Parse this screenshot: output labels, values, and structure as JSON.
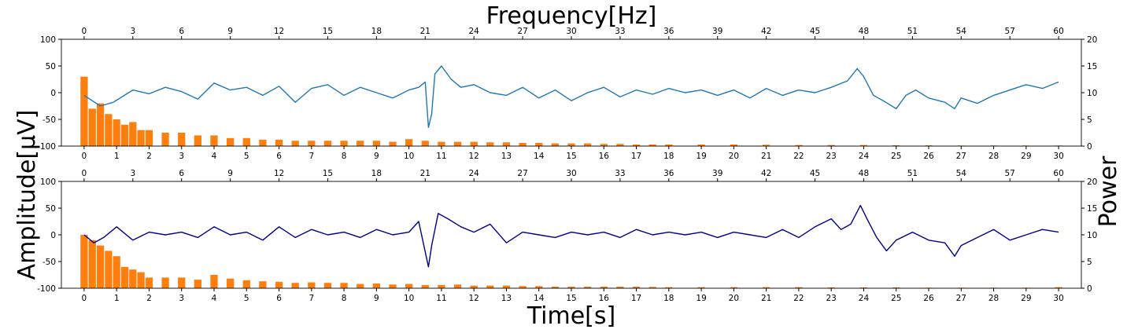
{
  "figure": {
    "top_xlabel": "Frequency[Hz]",
    "bottom_xlabel": "Time[s]",
    "left_ylabel": "Amplitude[μV]",
    "right_ylabel": "Power"
  },
  "chart_data": [
    {
      "type": "line",
      "panel": "top",
      "series": [
        {
          "name": "",
          "color": "#1f77b4",
          "x": [
            0,
            0.5,
            0.9,
            1.5,
            2,
            2.5,
            3,
            3.5,
            4,
            4.5,
            5,
            5.5,
            6,
            6.5,
            7,
            7.5,
            8,
            8.5,
            9,
            9.5,
            10,
            10.3,
            10.5,
            10.6,
            10.7,
            10.8,
            11,
            11.3,
            11.6,
            12,
            12.5,
            13,
            13.5,
            14,
            14.5,
            15,
            15.5,
            16,
            16.5,
            17,
            17.5,
            18,
            18.5,
            19,
            19.5,
            20,
            20.5,
            21,
            21.5,
            22,
            22.5,
            23,
            23.5,
            23.8,
            24,
            24.3,
            24.6,
            25,
            25.3,
            25.6,
            26,
            26.5,
            26.8,
            27,
            27.5,
            28,
            28.5,
            29,
            29.5,
            30
          ],
          "y": [
            -5,
            -25,
            -18,
            5,
            -2,
            10,
            2,
            -12,
            18,
            5,
            10,
            -5,
            12,
            -18,
            8,
            15,
            -5,
            10,
            0,
            -10,
            5,
            10,
            20,
            -65,
            -40,
            35,
            50,
            25,
            10,
            15,
            0,
            -5,
            10,
            -10,
            5,
            -15,
            0,
            10,
            -8,
            5,
            -3,
            8,
            0,
            5,
            -5,
            5,
            -10,
            8,
            -5,
            5,
            0,
            10,
            22,
            45,
            30,
            -5,
            -15,
            -30,
            -5,
            5,
            -10,
            -18,
            -30,
            -10,
            -20,
            -5,
            5,
            15,
            8,
            20
          ]
        }
      ],
      "xlim": [
        -0.7,
        30.7
      ],
      "ylim": [
        -100,
        100
      ],
      "xticks": [
        0,
        1,
        2,
        3,
        4,
        5,
        6,
        7,
        8,
        9,
        10,
        11,
        12,
        13,
        14,
        15,
        16,
        17,
        18,
        19,
        20,
        21,
        22,
        23,
        24,
        25,
        26,
        27,
        28,
        29,
        30
      ],
      "yticks": [
        -100,
        -50,
        0,
        50,
        100
      ]
    },
    {
      "type": "bar",
      "panel": "top",
      "series": [
        {
          "name": "",
          "color": "#ff7f0e",
          "x": [
            0,
            0.5,
            1,
            1.5,
            2,
            2.5,
            3,
            3.5,
            4,
            5,
            6,
            7,
            8,
            9,
            10,
            11,
            12,
            13,
            14,
            15,
            16,
            17,
            18,
            19,
            20,
            21,
            22,
            23,
            24,
            25,
            26,
            27,
            28,
            29,
            30,
            31,
            32,
            33,
            34,
            35,
            36,
            38,
            40,
            42,
            44,
            46,
            48,
            50,
            52,
            54,
            56,
            58,
            60
          ],
          "values": [
            13,
            7,
            8,
            6,
            5,
            4,
            4.5,
            3,
            3,
            2.5,
            2.5,
            2,
            2,
            1.5,
            1.5,
            1.2,
            1.2,
            1,
            1,
            1,
            1,
            1,
            1,
            0.8,
            1.3,
            1,
            0.8,
            0.8,
            0.8,
            0.7,
            0.7,
            0.6,
            0.6,
            0.5,
            0.5,
            0.5,
            0.4,
            0.4,
            0.3,
            0.3,
            0.3,
            0.3,
            0.3,
            0.25,
            0.2,
            0.2,
            0.2,
            0.15,
            0.15,
            0.1,
            0.1,
            0.1,
            0.1
          ]
        }
      ],
      "xlim": [
        -1.4,
        61.4
      ],
      "ylim": [
        0,
        20
      ],
      "xticks": [
        0,
        3,
        6,
        9,
        12,
        15,
        18,
        21,
        24,
        27,
        30,
        33,
        36,
        39,
        42,
        45,
        48,
        51,
        54,
        57,
        60
      ],
      "yticks": [
        0,
        5,
        10,
        15,
        20
      ]
    },
    {
      "type": "line",
      "panel": "bottom",
      "series": [
        {
          "name": "",
          "color": "#00008b",
          "x": [
            0,
            0.3,
            0.6,
            1,
            1.5,
            2,
            2.5,
            3,
            3.5,
            4,
            4.5,
            5,
            5.5,
            6,
            6.5,
            7,
            7.5,
            8,
            8.5,
            9,
            9.5,
            10,
            10.3,
            10.6,
            10.7,
            10.9,
            11.2,
            11.6,
            12,
            12.5,
            13,
            13.5,
            14,
            14.5,
            15,
            15.5,
            16,
            16.5,
            17,
            17.5,
            18,
            18.5,
            19,
            19.5,
            20,
            20.5,
            21,
            21.5,
            22,
            22.5,
            23,
            23.3,
            23.6,
            23.9,
            24.1,
            24.4,
            24.7,
            25,
            25.5,
            26,
            26.5,
            26.8,
            27,
            27.5,
            28,
            28.5,
            29,
            29.5,
            30
          ],
          "y": [
            0,
            -15,
            -5,
            15,
            -10,
            5,
            0,
            5,
            -5,
            15,
            0,
            5,
            -10,
            15,
            -5,
            10,
            0,
            5,
            -5,
            10,
            0,
            5,
            25,
            -60,
            -20,
            40,
            30,
            15,
            5,
            20,
            -15,
            5,
            0,
            -5,
            5,
            0,
            5,
            -5,
            10,
            0,
            5,
            0,
            5,
            -5,
            5,
            0,
            -5,
            10,
            -5,
            15,
            30,
            10,
            20,
            55,
            30,
            -5,
            -30,
            -10,
            5,
            -10,
            -15,
            -40,
            -20,
            -5,
            10,
            -10,
            0,
            10,
            5
          ]
        }
      ],
      "xlim": [
        -0.7,
        30.7
      ],
      "ylim": [
        -100,
        100
      ],
      "xticks": [
        0,
        1,
        2,
        3,
        4,
        5,
        6,
        7,
        8,
        9,
        10,
        11,
        12,
        13,
        14,
        15,
        16,
        17,
        18,
        19,
        20,
        21,
        22,
        23,
        24,
        25,
        26,
        27,
        28,
        29,
        30
      ],
      "yticks": [
        -100,
        -50,
        0,
        50,
        100
      ]
    },
    {
      "type": "bar",
      "panel": "bottom",
      "series": [
        {
          "name": "",
          "color": "#ff7f0e",
          "x": [
            0,
            0.5,
            1,
            1.5,
            2,
            2.5,
            3,
            3.5,
            4,
            5,
            6,
            7,
            8,
            9,
            10,
            11,
            12,
            13,
            14,
            15,
            16,
            17,
            18,
            19,
            20,
            21,
            22,
            23,
            24,
            25,
            26,
            27,
            28,
            29,
            30,
            31,
            32,
            33,
            34,
            35,
            36,
            38,
            40,
            42,
            44,
            46,
            48,
            50,
            52,
            54,
            56,
            58,
            60
          ],
          "values": [
            10,
            9,
            8,
            7,
            6,
            4,
            3.5,
            3,
            2,
            2,
            2,
            1.6,
            2.5,
            1.8,
            1.5,
            1.3,
            1.2,
            1,
            1.1,
            1,
            1,
            0.8,
            0.9,
            0.7,
            0.8,
            0.6,
            0.6,
            0.7,
            0.5,
            0.5,
            0.5,
            0.4,
            0.4,
            0.3,
            0.3,
            0.3,
            0.3,
            0.3,
            0.3,
            0.25,
            0.2,
            0.2,
            0.2,
            0.2,
            0.2,
            0.15,
            0.15,
            0.15,
            0.1,
            0.1,
            0.1,
            0.1,
            0.2
          ]
        }
      ],
      "xlim": [
        -1.4,
        61.4
      ],
      "ylim": [
        0,
        20
      ],
      "xticks": [
        0,
        3,
        6,
        9,
        12,
        15,
        18,
        21,
        24,
        27,
        30,
        33,
        36,
        39,
        42,
        45,
        48,
        51,
        54,
        57,
        60
      ],
      "yticks": [
        0,
        5,
        10,
        15,
        20
      ]
    }
  ]
}
